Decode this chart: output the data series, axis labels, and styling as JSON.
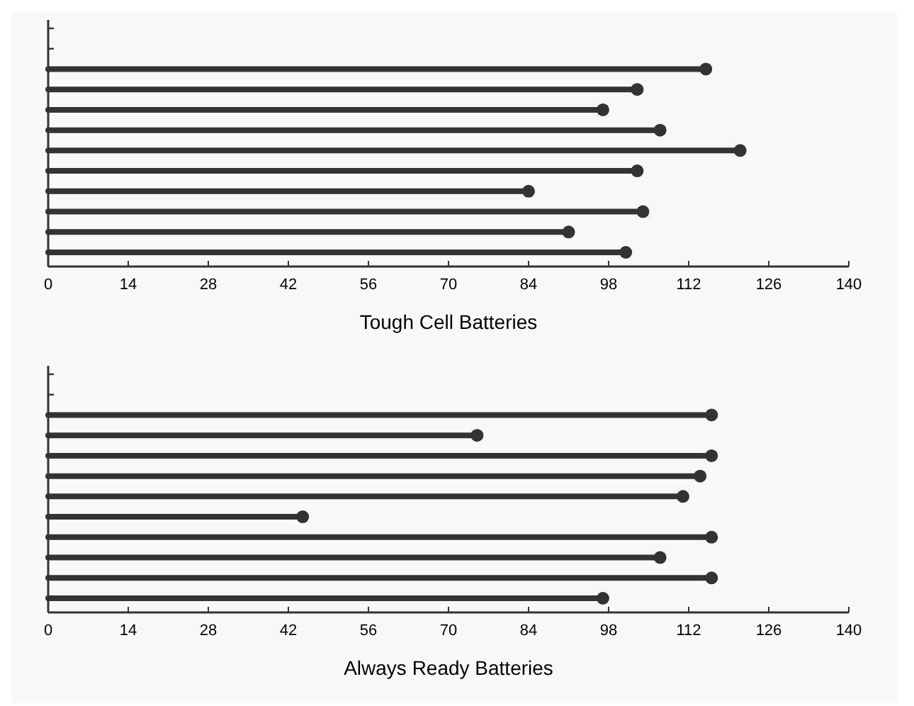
{
  "chart_data": [
    {
      "type": "lollipop",
      "orientation": "horizontal",
      "xlabel": "Tough Cell Batteries",
      "categories": [
        null,
        null,
        null,
        null,
        null,
        null,
        null,
        null,
        null,
        null,
        null,
        null
      ],
      "series": [
        {
          "color": "#333333",
          "values": [
            null,
            null,
            115,
            103,
            97,
            107,
            121,
            103,
            84,
            104,
            91,
            101
          ]
        }
      ],
      "xlim": [
        0,
        140
      ],
      "xticks": [
        0,
        14,
        28,
        42,
        56,
        70,
        84,
        98,
        112,
        126,
        140
      ],
      "tick_labels": "x",
      "marker": "circle"
    },
    {
      "type": "lollipop",
      "orientation": "horizontal",
      "xlabel": "Always Ready Batteries",
      "categories": [
        null,
        null,
        null,
        null,
        null,
        null,
        null,
        null,
        null,
        null,
        null,
        null
      ],
      "series": [
        {
          "color": "#333333",
          "values": [
            null,
            null,
            116,
            75,
            116,
            114,
            111,
            44.5,
            116,
            107,
            116,
            97
          ]
        }
      ],
      "xlim": [
        0,
        140
      ],
      "xticks": [
        0,
        14,
        28,
        42,
        56,
        70,
        84,
        98,
        112,
        126,
        140
      ],
      "tick_labels": "x",
      "marker": "circle"
    }
  ]
}
